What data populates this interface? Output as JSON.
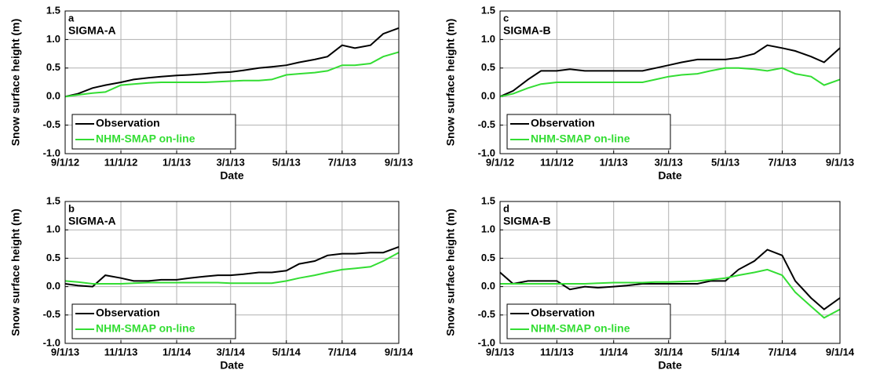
{
  "chart_data": [
    {
      "type": "line",
      "panel_label": "a",
      "site": "SIGMA-A",
      "xlabel": "Date",
      "ylabel": "Snow surface height (m)",
      "grid": true,
      "legend": "lower left",
      "x": [
        "2012-09-01",
        "2012-09-15",
        "2012-10-01",
        "2012-10-15",
        "2012-11-01",
        "2012-11-15",
        "2012-12-01",
        "2012-12-15",
        "2013-01-01",
        "2013-01-15",
        "2013-02-01",
        "2013-02-15",
        "2013-03-01",
        "2013-03-15",
        "2013-04-01",
        "2013-04-15",
        "2013-05-01",
        "2013-05-15",
        "2013-06-01",
        "2013-06-15",
        "2013-07-01",
        "2013-07-15",
        "2013-08-01",
        "2013-08-15",
        "2013-09-01"
      ],
      "xlim": [
        "2012-09-01",
        "2013-09-01"
      ],
      "xticks": [
        {
          "value": "2012-09-01",
          "label": "9/1/12"
        },
        {
          "value": "2012-11-01",
          "label": "11/1/12"
        },
        {
          "value": "2013-01-01",
          "label": "1/1/13"
        },
        {
          "value": "2013-03-01",
          "label": "3/1/13"
        },
        {
          "value": "2013-05-01",
          "label": "5/1/13"
        },
        {
          "value": "2013-07-01",
          "label": "7/1/13"
        },
        {
          "value": "2013-09-01",
          "label": "9/1/13"
        }
      ],
      "ylim": [
        -1,
        1.5
      ],
      "yticks": [
        {
          "value": -1,
          "label": "-1.0"
        },
        -0.5,
        {
          "value": 0,
          "label": "0.0"
        },
        0.5,
        {
          "value": 1,
          "label": "1.0"
        },
        1.5
      ],
      "series": [
        {
          "name": "Observation",
          "color": "#000000",
          "values": [
            0,
            0.05,
            0.15,
            0.2,
            0.25,
            0.3,
            0.33,
            0.35,
            0.37,
            0.38,
            0.4,
            0.42,
            0.43,
            0.46,
            0.5,
            0.52,
            0.55,
            0.6,
            0.65,
            0.7,
            0.9,
            0.85,
            0.9,
            1.1,
            1.2
          ]
        },
        {
          "name": "NHM-SMAP on-line",
          "color": "#33dd33",
          "values": [
            0,
            0.03,
            0.06,
            0.08,
            0.2,
            0.22,
            0.24,
            0.25,
            0.25,
            0.25,
            0.25,
            0.26,
            0.27,
            0.28,
            0.28,
            0.3,
            0.38,
            0.4,
            0.42,
            0.45,
            0.55,
            0.55,
            0.58,
            0.7,
            0.78
          ]
        }
      ]
    },
    {
      "type": "line",
      "panel_label": "c",
      "site": "SIGMA-B",
      "xlabel": "Date",
      "ylabel": "Snow surface height (m)",
      "grid": true,
      "legend": "lower left",
      "x": [
        "2012-09-01",
        "2012-09-15",
        "2012-10-01",
        "2012-10-15",
        "2012-11-01",
        "2012-11-15",
        "2012-12-01",
        "2012-12-15",
        "2013-01-01",
        "2013-01-15",
        "2013-02-01",
        "2013-02-15",
        "2013-03-01",
        "2013-03-15",
        "2013-04-01",
        "2013-04-15",
        "2013-05-01",
        "2013-05-15",
        "2013-06-01",
        "2013-06-15",
        "2013-07-01",
        "2013-07-15",
        "2013-08-01",
        "2013-08-15",
        "2013-09-01"
      ],
      "xlim": [
        "2012-09-01",
        "2013-09-01"
      ],
      "xticks": [
        {
          "value": "2012-09-01",
          "label": "9/1/12"
        },
        {
          "value": "2012-11-01",
          "label": "11/1/12"
        },
        {
          "value": "2013-01-01",
          "label": "1/1/13"
        },
        {
          "value": "2013-03-01",
          "label": "3/1/13"
        },
        {
          "value": "2013-05-01",
          "label": "5/1/13"
        },
        {
          "value": "2013-07-01",
          "label": "7/1/13"
        },
        {
          "value": "2013-09-01",
          "label": "9/1/13"
        }
      ],
      "ylim": [
        -1,
        1.5
      ],
      "yticks": [
        {
          "value": -1,
          "label": "-1.0"
        },
        -0.5,
        {
          "value": 0,
          "label": "0.0"
        },
        0.5,
        {
          "value": 1,
          "label": "1.0"
        },
        1.5
      ],
      "series": [
        {
          "name": "Observation",
          "color": "#000000",
          "values": [
            0,
            0.1,
            0.3,
            0.45,
            0.45,
            0.48,
            0.45,
            0.45,
            0.45,
            0.45,
            0.45,
            0.5,
            0.55,
            0.6,
            0.65,
            0.65,
            0.65,
            0.68,
            0.75,
            0.9,
            0.85,
            0.8,
            0.7,
            0.6,
            0.85
          ]
        },
        {
          "name": "NHM-SMAP on-line",
          "color": "#33dd33",
          "values": [
            0,
            0.05,
            0.15,
            0.22,
            0.25,
            0.25,
            0.25,
            0.25,
            0.25,
            0.25,
            0.25,
            0.3,
            0.35,
            0.38,
            0.4,
            0.45,
            0.5,
            0.5,
            0.48,
            0.45,
            0.5,
            0.4,
            0.35,
            0.2,
            0.3
          ]
        }
      ]
    },
    {
      "type": "line",
      "panel_label": "b",
      "site": "SIGMA-A",
      "xlabel": "Date",
      "ylabel": "Snow surface height (m)",
      "grid": true,
      "legend": "lower left",
      "x": [
        "2013-09-01",
        "2013-09-15",
        "2013-10-01",
        "2013-10-15",
        "2013-11-01",
        "2013-11-15",
        "2013-12-01",
        "2013-12-15",
        "2014-01-01",
        "2014-01-15",
        "2014-02-01",
        "2014-02-15",
        "2014-03-01",
        "2014-03-15",
        "2014-04-01",
        "2014-04-15",
        "2014-05-01",
        "2014-05-15",
        "2014-06-01",
        "2014-06-15",
        "2014-07-01",
        "2014-07-15",
        "2014-08-01",
        "2014-08-15",
        "2014-09-01"
      ],
      "xlim": [
        "2013-09-01",
        "2014-09-01"
      ],
      "xticks": [
        {
          "value": "2013-09-01",
          "label": "9/1/13"
        },
        {
          "value": "2013-11-01",
          "label": "11/1/13"
        },
        {
          "value": "2014-01-01",
          "label": "1/1/14"
        },
        {
          "value": "2014-03-01",
          "label": "3/1/14"
        },
        {
          "value": "2014-05-01",
          "label": "5/1/14"
        },
        {
          "value": "2014-07-01",
          "label": "7/1/14"
        },
        {
          "value": "2014-09-01",
          "label": "9/1/14"
        }
      ],
      "ylim": [
        -1,
        1.5
      ],
      "yticks": [
        {
          "value": -1,
          "label": "-1.0"
        },
        -0.5,
        {
          "value": 0,
          "label": "0.0"
        },
        0.5,
        {
          "value": 1,
          "label": "1.0"
        },
        1.5
      ],
      "series": [
        {
          "name": "Observation",
          "color": "#000000",
          "values": [
            0.05,
            0.02,
            0,
            0.2,
            0.15,
            0.1,
            0.1,
            0.12,
            0.12,
            0.15,
            0.18,
            0.2,
            0.2,
            0.22,
            0.25,
            0.25,
            0.28,
            0.4,
            0.45,
            0.55,
            0.58,
            0.58,
            0.6,
            0.6,
            0.7
          ]
        },
        {
          "name": "NHM-SMAP on-line",
          "color": "#33dd33",
          "values": [
            0.1,
            0.08,
            0.05,
            0.05,
            0.05,
            0.06,
            0.07,
            0.07,
            0.07,
            0.07,
            0.07,
            0.07,
            0.06,
            0.06,
            0.06,
            0.06,
            0.1,
            0.15,
            0.2,
            0.25,
            0.3,
            0.32,
            0.35,
            0.45,
            0.6
          ]
        }
      ]
    },
    {
      "type": "line",
      "panel_label": "d",
      "site": "SIGMA-B",
      "xlabel": "Date",
      "ylabel": "Snow surface height (m)",
      "grid": true,
      "legend": "lower left",
      "x": [
        "2013-09-01",
        "2013-09-15",
        "2013-10-01",
        "2013-10-15",
        "2013-11-01",
        "2013-11-15",
        "2013-12-01",
        "2013-12-15",
        "2014-01-01",
        "2014-01-15",
        "2014-02-01",
        "2014-02-15",
        "2014-03-01",
        "2014-03-15",
        "2014-04-01",
        "2014-04-15",
        "2014-05-01",
        "2014-05-15",
        "2014-06-01",
        "2014-06-15",
        "2014-07-01",
        "2014-07-15",
        "2014-08-01",
        "2014-08-15",
        "2014-09-01"
      ],
      "xlim": [
        "2013-09-01",
        "2014-09-01"
      ],
      "xticks": [
        {
          "value": "2013-09-01",
          "label": "9/1/13"
        },
        {
          "value": "2013-11-01",
          "label": "11/1/13"
        },
        {
          "value": "2014-01-01",
          "label": "1/1/14"
        },
        {
          "value": "2014-03-01",
          "label": "3/1/14"
        },
        {
          "value": "2014-05-01",
          "label": "5/1/14"
        },
        {
          "value": "2014-07-01",
          "label": "7/1/14"
        },
        {
          "value": "2014-09-01",
          "label": "9/1/14"
        }
      ],
      "ylim": [
        -1,
        1.5
      ],
      "yticks": [
        {
          "value": -1,
          "label": "-1.0"
        },
        -0.5,
        {
          "value": 0,
          "label": "0.0"
        },
        0.5,
        {
          "value": 1,
          "label": "1.0"
        },
        1.5
      ],
      "series": [
        {
          "name": "Observation",
          "color": "#000000",
          "values": [
            0.25,
            0.05,
            0.1,
            0.1,
            0.1,
            -0.05,
            0,
            -0.02,
            0,
            0.02,
            0.05,
            0.05,
            0.05,
            0.05,
            0.05,
            0.1,
            0.1,
            0.3,
            0.45,
            0.65,
            0.55,
            0.1,
            -0.2,
            -0.4,
            -0.2
          ]
        },
        {
          "name": "NHM-SMAP on-line",
          "color": "#33dd33",
          "values": [
            0.05,
            0.05,
            0.05,
            0.05,
            0.05,
            0.05,
            0.05,
            0.06,
            0.07,
            0.07,
            0.07,
            0.08,
            0.08,
            0.09,
            0.1,
            0.12,
            0.15,
            0.2,
            0.25,
            0.3,
            0.2,
            -0.1,
            -0.35,
            -0.55,
            -0.4
          ]
        }
      ]
    }
  ]
}
